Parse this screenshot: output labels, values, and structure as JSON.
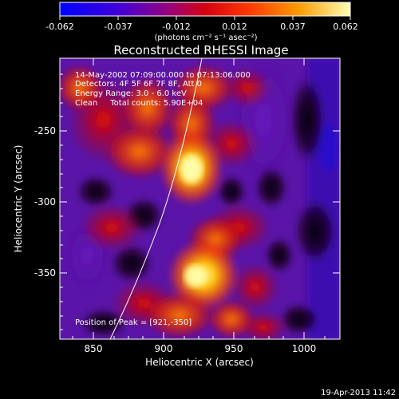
{
  "colorbar": {
    "tick_labels": [
      "-0.062",
      "-0.037",
      "-0.012",
      "0.012",
      "0.037",
      "0.062"
    ],
    "units": "(photons cm⁻² s⁻¹ asec⁻²)"
  },
  "title": "Reconstructed RHESSI Image",
  "info": {
    "time_range": "14-May-2002 07:09:00.000 to 07:13:06.000",
    "detectors": "Detectors: 4F 5F 6F 7F 8F, Att 0",
    "energy_range": "Energy Range: 3.0 - 6.0 keV",
    "method_counts": "Clean     Total counts: 5.90E+04",
    "peak_position": "Position of Peak = [921,-350]"
  },
  "axes": {
    "xlabel": "Heliocentric X (arcsec)",
    "ylabel": "Heliocentric Y (arcsec)",
    "xticks": [
      "850",
      "900",
      "950",
      "1000"
    ],
    "yticks": [
      "-250",
      "-300",
      "-350"
    ]
  },
  "footer_timestamp": "19-Apr-2013 11:42",
  "colors": {
    "background": "#000000",
    "colormap": [
      "#0000ff",
      "#6a00c8",
      "#c8003c",
      "#ff3c00",
      "#ff9600",
      "#ffffb4"
    ],
    "limb_line": "#ffffff"
  }
}
